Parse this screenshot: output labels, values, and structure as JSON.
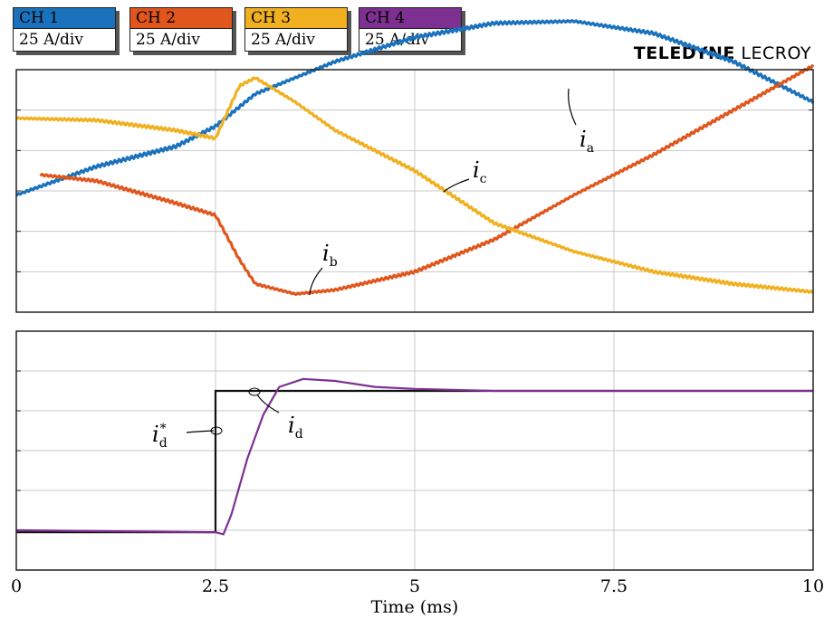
{
  "channels": [
    {
      "name": "CH 1",
      "scale": "25 A/div",
      "color": "#1a72bd"
    },
    {
      "name": "CH 2",
      "scale": "25 A/div",
      "color": "#e0561c"
    },
    {
      "name": "CH 3",
      "scale": "25 A/div",
      "color": "#f0b020"
    },
    {
      "name": "CH 4",
      "scale": "25 A/div",
      "color": "#7d2f92"
    }
  ],
  "brand": {
    "bold": "TELEDYNE",
    "light": "LECROY"
  },
  "chart_data": [
    {
      "type": "line",
      "xlim": [
        0,
        10
      ],
      "xticks": [
        "0",
        "2.5",
        "5",
        "7.5",
        "10"
      ],
      "xlabel": "Time (ms)",
      "grid": true,
      "series": [
        {
          "label_main": "i",
          "label_sub": "a",
          "color": "#1a72bd",
          "ripple": 2.5,
          "x": [
            0,
            1,
            2,
            2.5,
            3,
            4,
            5,
            6,
            7,
            8,
            9,
            10
          ],
          "y": [
            -0.1,
            0.6,
            1.1,
            1.6,
            2.4,
            3.2,
            3.8,
            4.15,
            4.2,
            3.9,
            3.2,
            2.2
          ]
        },
        {
          "label_main": "i",
          "label_sub": "b",
          "color": "#e0561c",
          "ripple": 2.0,
          "x": [
            0.3,
            1,
            2,
            2.5,
            2.8,
            3,
            3.5,
            4,
            5,
            6,
            7,
            8,
            9,
            10
          ],
          "y": [
            0.4,
            0.25,
            -0.3,
            -0.6,
            -1.7,
            -2.3,
            -2.55,
            -2.45,
            -2.0,
            -1.2,
            -0.1,
            0.9,
            2.0,
            3.1
          ],
          "labels_note": "y in divisions"
        },
        {
          "label_main": "i",
          "label_sub": "c",
          "color": "#f0b020",
          "ripple": 2.0,
          "x": [
            0,
            1,
            2,
            2.5,
            2.8,
            3,
            3.5,
            4,
            5,
            6,
            7,
            8,
            9,
            10
          ],
          "y": [
            1.8,
            1.75,
            1.5,
            1.3,
            2.6,
            2.8,
            2.2,
            1.5,
            0.5,
            -0.8,
            -1.5,
            -2.0,
            -2.3,
            -2.5
          ]
        }
      ],
      "y_units": "div"
    },
    {
      "type": "line",
      "xlim": [
        0,
        10
      ],
      "xticks": [
        "0",
        "2.5",
        "5",
        "7.5",
        "10"
      ],
      "xlabel": "Time (ms)",
      "grid": true,
      "series": [
        {
          "label_main": "i",
          "label_sub": "d",
          "label_sup": "*",
          "color": "#111111",
          "x": [
            0,
            2.5,
            2.5,
            10
          ],
          "y": [
            -2.05,
            -2.05,
            1.5,
            1.5
          ]
        },
        {
          "label_main": "i",
          "label_sub": "d",
          "color": "#7d2f92",
          "x": [
            0,
            2.5,
            2.6,
            2.7,
            2.9,
            3.1,
            3.3,
            3.6,
            4.0,
            4.5,
            5,
            6,
            7,
            8,
            9,
            10
          ],
          "y": [
            -2.0,
            -2.05,
            -2.1,
            -1.6,
            -0.2,
            0.9,
            1.6,
            1.8,
            1.75,
            1.6,
            1.55,
            1.5,
            1.5,
            1.5,
            1.5,
            1.5
          ]
        }
      ],
      "y_units": "div"
    }
  ]
}
